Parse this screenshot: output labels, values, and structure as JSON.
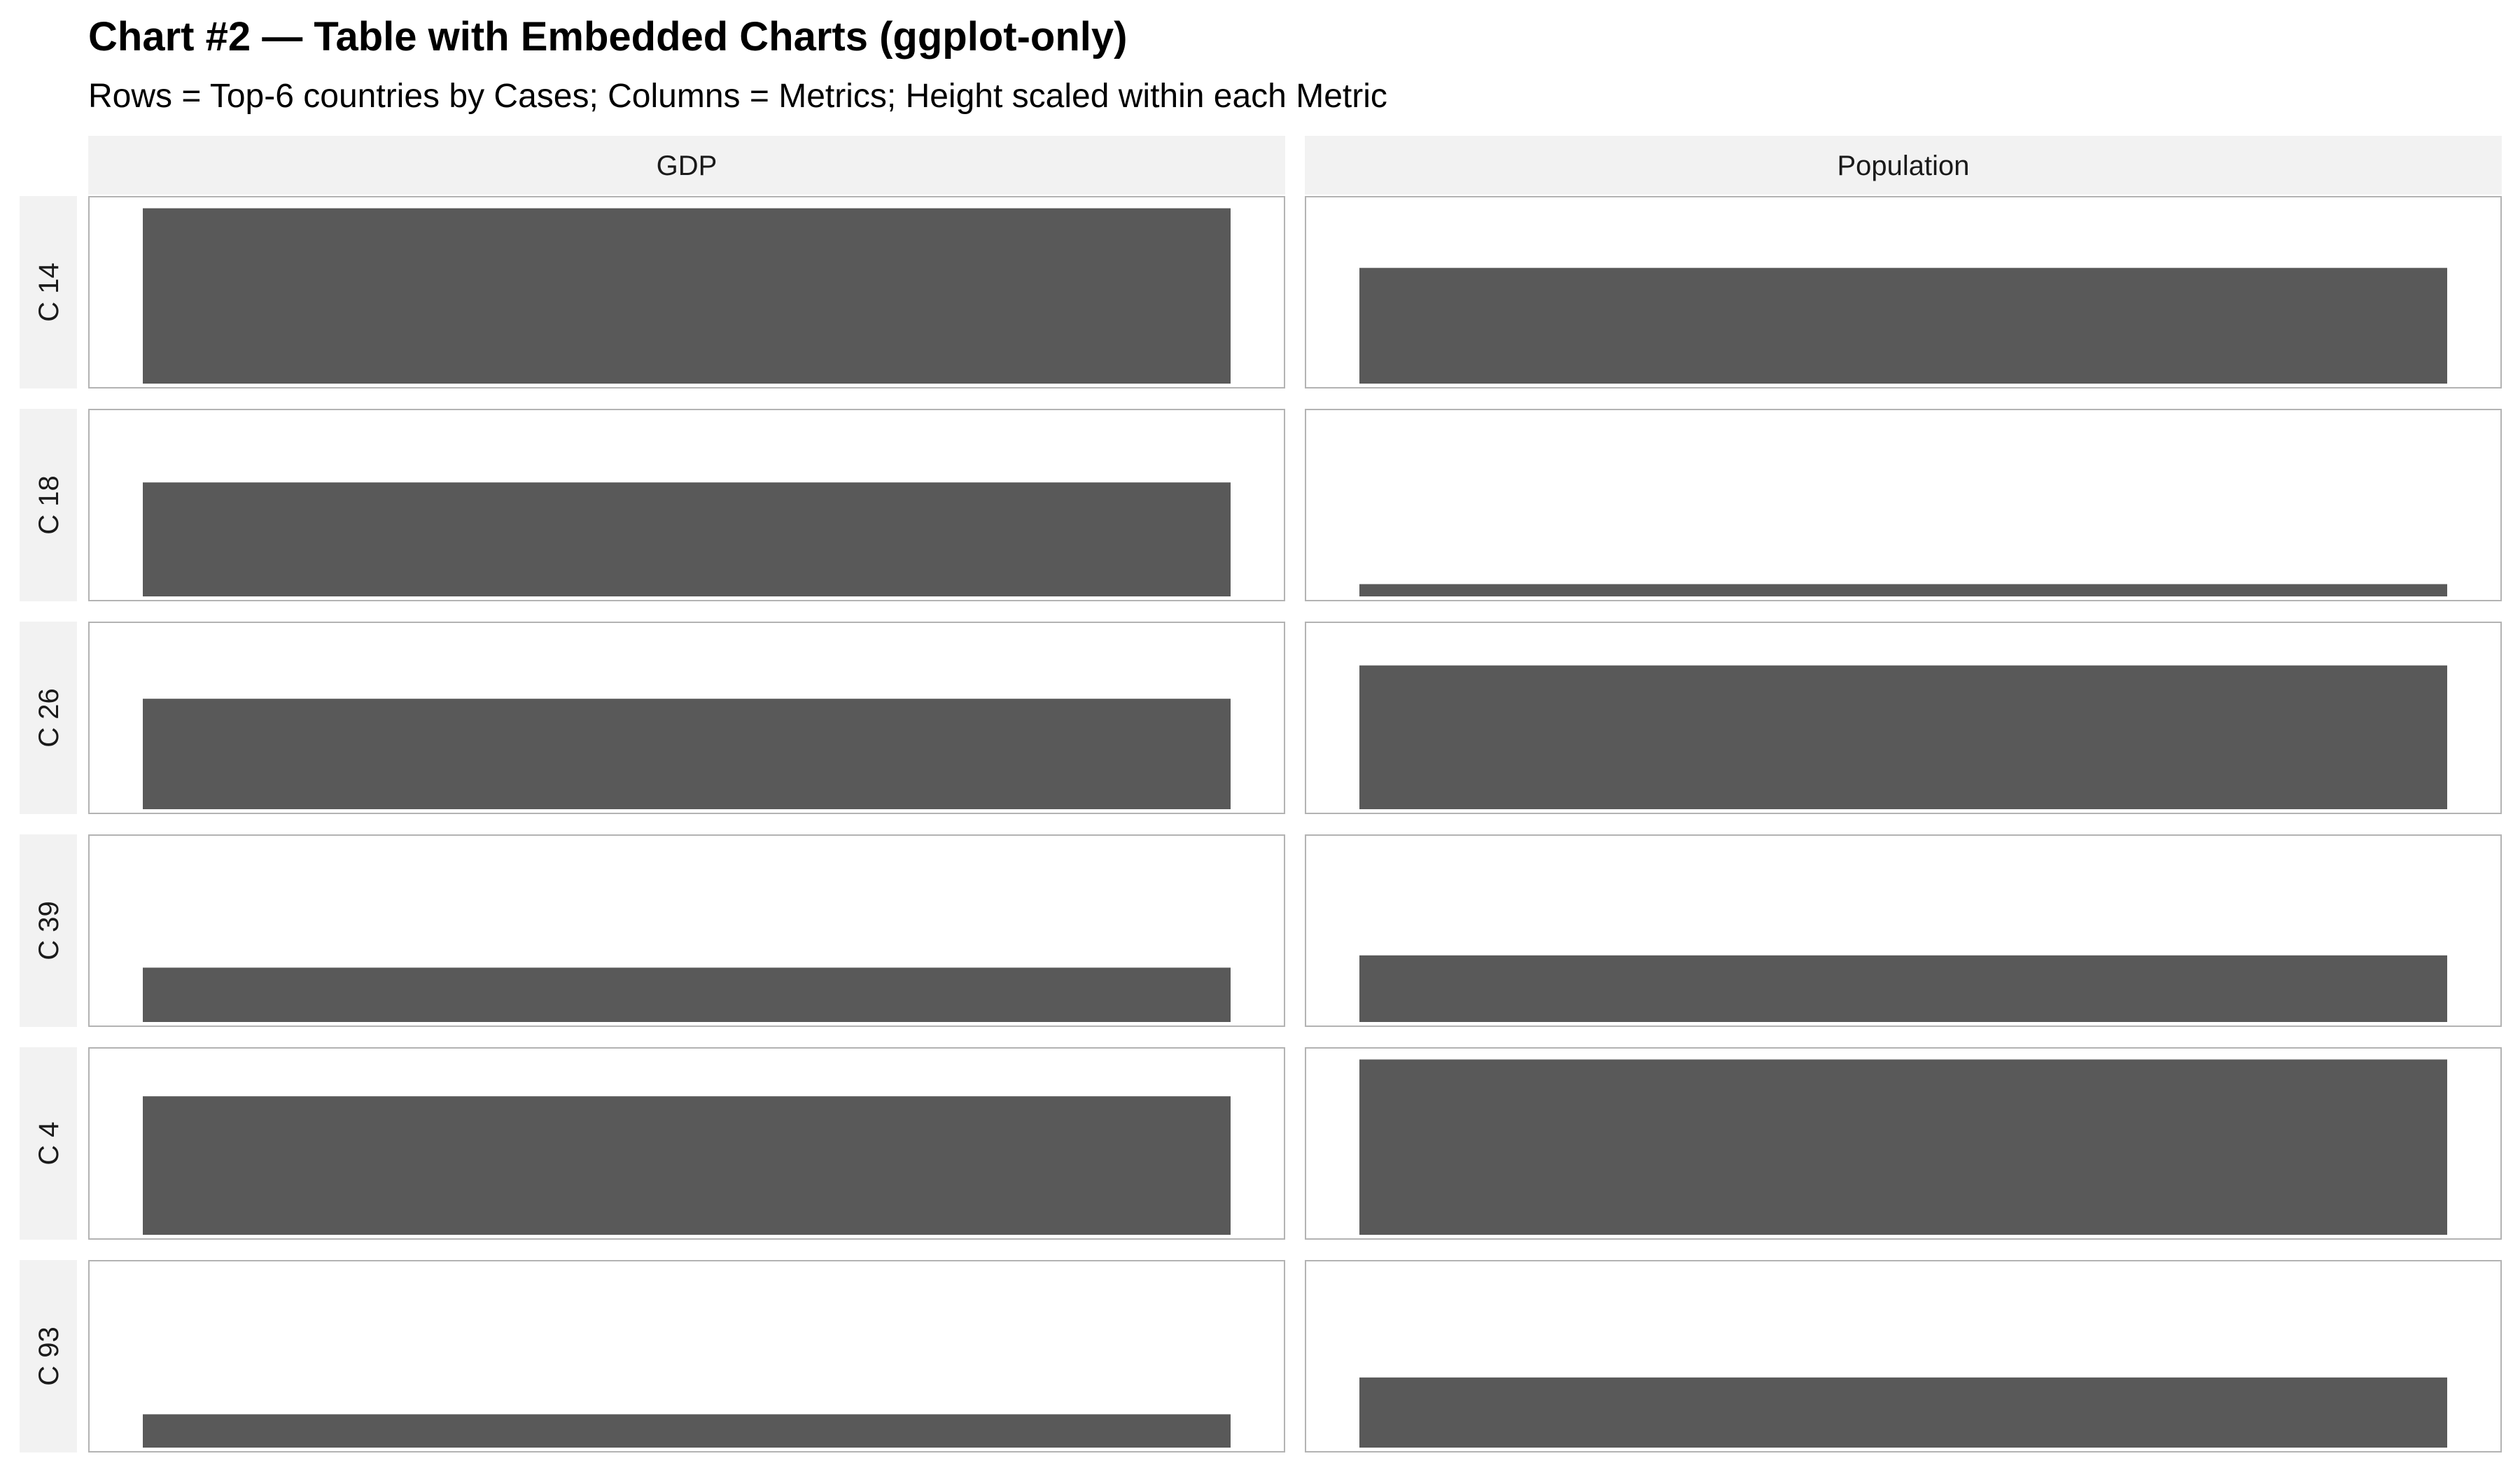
{
  "chart_data": {
    "type": "bar",
    "title": "Chart #2 — Table with Embedded Charts (ggplot-only)",
    "subtitle": "Rows = Top-6 countries by Cases; Columns = Metrics; Height scaled within each Metric",
    "columns": [
      "GDP",
      "Population"
    ],
    "rows": [
      "C 14",
      "C 18",
      "C 26",
      "C 39",
      "C 4",
      "C 93"
    ],
    "values": {
      "GDP": [
        1.0,
        0.65,
        0.63,
        0.31,
        0.79,
        0.19
      ],
      "Population": [
        0.66,
        0.07,
        0.82,
        0.38,
        1.0,
        0.4
      ]
    },
    "ylim": [
      0,
      1.05
    ],
    "grid": false,
    "bar_color": "#595959",
    "strip_fill": "#f2f2f2",
    "panel_border_color": "#b3b3b3"
  }
}
